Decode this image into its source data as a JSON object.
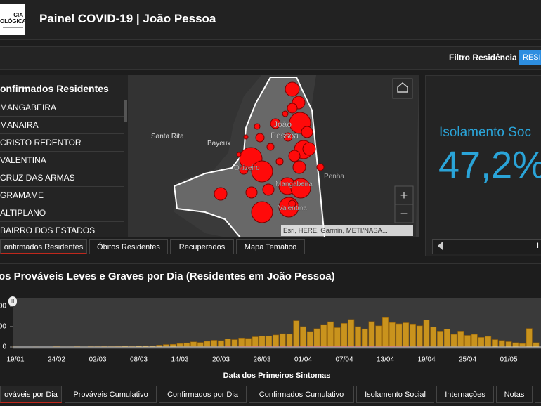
{
  "header": {
    "logo_lines": [
      "CIA",
      "OLÓGICA"
    ],
    "title": "Painel COVID-19 | João Pessoa"
  },
  "filter": {
    "label": "Filtro Residência",
    "button": "RESID"
  },
  "list": {
    "title": "onfirmados Residentes",
    "items": [
      "MANGABEIRA",
      "MANAIRA",
      "CRISTO REDENTOR",
      "VALENTINA",
      "CRUZ DAS ARMAS",
      "GRAMAME",
      "ALTIPLANO",
      "BAIRRO DOS ESTADOS"
    ]
  },
  "map": {
    "labels": [
      "Santa Rita",
      "Bayeux",
      "João",
      "Pessoa",
      "Oitizeiro",
      "Mangabeira",
      "Penha",
      "Valentina"
    ],
    "zoom_in": "+",
    "zoom_out": "−",
    "attribution": "Esri, HERE, Garmin, METI/NASA..."
  },
  "indicator": {
    "title": "Isolamento Soc",
    "value": "47,2%"
  },
  "tabs_top": [
    "onfirmados Residentes",
    "Óbitos Residentes",
    "Recuperados",
    "Mapa Temático"
  ],
  "tabs_top_right": [
    "I"
  ],
  "chart": {
    "type": "bar",
    "title": "os Prováveis Leves e Graves por Dia (Residentes em João Pessoa)",
    "x_label": "Data dos Primeiros Sintomas",
    "categories": [
      "19/01",
      null,
      null,
      null,
      null,
      null,
      "24/02",
      null,
      null,
      null,
      null,
      null,
      "02/03",
      null,
      null,
      null,
      null,
      null,
      "08/03",
      null,
      null,
      null,
      null,
      null,
      "14/03",
      null,
      null,
      null,
      null,
      null,
      "20/03",
      null,
      null,
      null,
      null,
      null,
      "26/03",
      null,
      null,
      null,
      null,
      null,
      "01/04",
      null,
      null,
      null,
      null,
      null,
      "07/04",
      null,
      null,
      null,
      null,
      null,
      "13/04",
      null,
      null,
      null,
      null,
      null,
      "19/04",
      null,
      null,
      null,
      null,
      null,
      "25/04",
      null,
      null,
      null,
      null,
      null,
      "01/05",
      null,
      null,
      null,
      null
    ],
    "series": [
      {
        "color": "#c0281c",
        "values": [
          0,
          0,
          0,
          0,
          0,
          0,
          0,
          0,
          0,
          0,
          0,
          0,
          0,
          0,
          0,
          0,
          0,
          0,
          0,
          0,
          1,
          1,
          2,
          1,
          2,
          2,
          3,
          2,
          3,
          3,
          3,
          4,
          3,
          4,
          4,
          5,
          4,
          5,
          4,
          5,
          5,
          4,
          5,
          6,
          5,
          5,
          4,
          5,
          6,
          5,
          5,
          4,
          5,
          4,
          4,
          5,
          4,
          4,
          3,
          4,
          3,
          3,
          3,
          3,
          2,
          3,
          2,
          2,
          2,
          2,
          1,
          2,
          1,
          1,
          2,
          1,
          1
        ]
      },
      {
        "color": "#c9931d",
        "values": [
          1,
          0,
          0,
          1,
          0,
          0,
          2,
          1,
          1,
          2,
          1,
          2,
          2,
          3,
          2,
          3,
          4,
          3,
          5,
          6,
          5,
          8,
          10,
          12,
          15,
          18,
          22,
          20,
          25,
          30,
          28,
          35,
          33,
          40,
          38,
          45,
          50,
          48,
          55,
          60,
          58,
          125,
          95,
          70,
          85,
          105,
          120,
          90,
          110,
          130,
          95,
          85,
          120,
          100,
          140,
          115,
          110,
          115,
          110,
          100,
          130,
          95,
          75,
          85,
          60,
          75,
          55,
          60,
          45,
          50,
          35,
          30,
          25,
          20,
          15,
          90,
          20
        ]
      }
    ],
    "ylim": [
      0,
      240
    ],
    "yticks": [
      {
        "value": 200,
        "label": "00"
      },
      {
        "value": 100,
        "label": "00"
      },
      {
        "value": 0,
        "label": "0"
      }
    ]
  },
  "tabs_bottom": [
    "ováveis por Dia",
    "Prováveis Cumulativo",
    "Confirmados por Dia",
    "Confirmados Cumulativo",
    "Isolamento Social",
    "Internações",
    "Notas"
  ]
}
